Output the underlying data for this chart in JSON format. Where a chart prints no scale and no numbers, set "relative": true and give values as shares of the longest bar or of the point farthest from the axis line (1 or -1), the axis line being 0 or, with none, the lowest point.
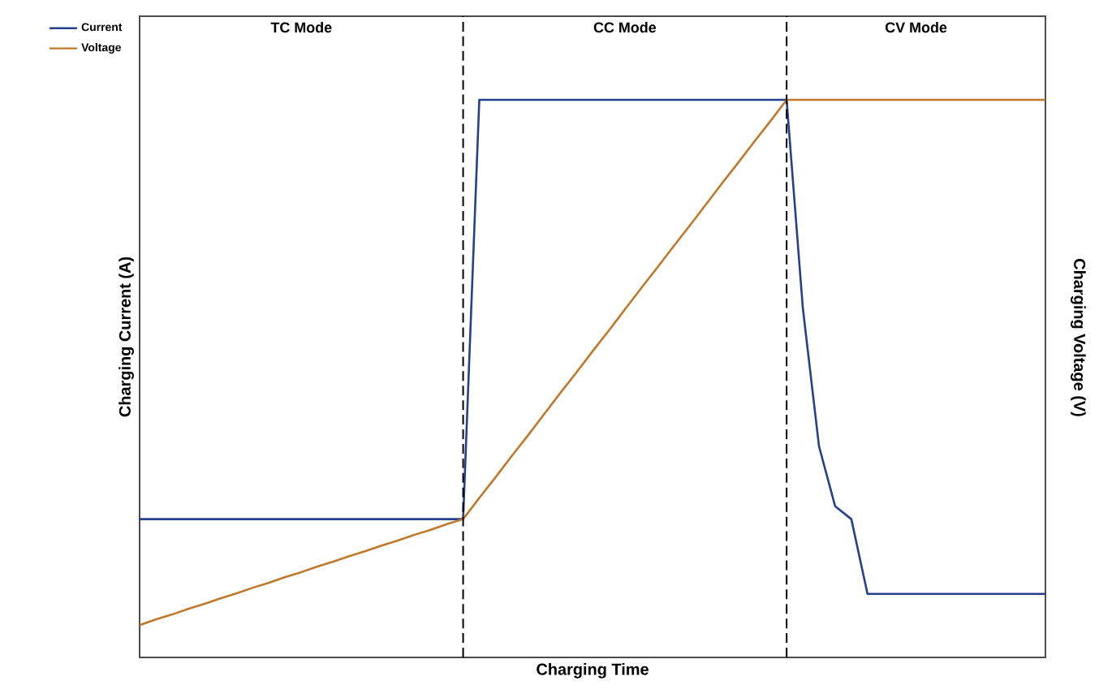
{
  "chart_data": {
    "type": "line",
    "relative": true,
    "xlabel": "Charging Time",
    "ylabel": "Charging Current (A)",
    "y2label": "Charging Voltage (V)",
    "categories": [
      null,
      null,
      null,
      null,
      null,
      null,
      null,
      null,
      null,
      null,
      null,
      null,
      null,
      null,
      null,
      null,
      null,
      null,
      null,
      null,
      null,
      null,
      null,
      null,
      null,
      null,
      null,
      null,
      null,
      null,
      null,
      null,
      null,
      null,
      null,
      null,
      null,
      null,
      null,
      null,
      null,
      null,
      null,
      null,
      null,
      null,
      null,
      null,
      null,
      null,
      null,
      null,
      null,
      null,
      null,
      null,
      null
    ],
    "legend": "top left",
    "line_style": "solid",
    "annotations": [
      "TC Mode",
      "CC Mode",
      "CV Mode"
    ],
    "series": [
      {
        "name": "Current",
        "color": "#24408e",
        "values": [
          0.248,
          0.248,
          0.248,
          0.248,
          0.248,
          0.248,
          0.248,
          0.248,
          0.248,
          0.248,
          0.248,
          0.248,
          0.248,
          0.248,
          0.248,
          0.248,
          0.248,
          0.248,
          0.248,
          0.248,
          0.248,
          1,
          1,
          1,
          1,
          1,
          1,
          1,
          1,
          1,
          1,
          1,
          1,
          1,
          1,
          1,
          1,
          1,
          1,
          1,
          1,
          0.627,
          0.379,
          0.271,
          0.248,
          0.114,
          0.114,
          0.114,
          0.114,
          0.114,
          0.114,
          0.114,
          0.114,
          0.114,
          0.114,
          0.114,
          0.114
        ]
      },
      {
        "name": "Voltage",
        "color": "#c0782a",
        "values": [
          0.058,
          0.068,
          0.077,
          0.087,
          0.096,
          0.106,
          0.115,
          0.125,
          0.134,
          0.144,
          0.153,
          0.163,
          0.172,
          0.182,
          0.191,
          0.201,
          0.21,
          0.22,
          0.229,
          0.239,
          0.248,
          0.286,
          0.323,
          0.361,
          0.398,
          0.436,
          0.474,
          0.511,
          0.549,
          0.586,
          0.624,
          0.662,
          0.699,
          0.737,
          0.774,
          0.812,
          0.85,
          0.887,
          0.925,
          0.962,
          1,
          1,
          1,
          1,
          1,
          1,
          1,
          1,
          1,
          1,
          1,
          1,
          1,
          1,
          1,
          1,
          1
        ]
      }
    ]
  }
}
